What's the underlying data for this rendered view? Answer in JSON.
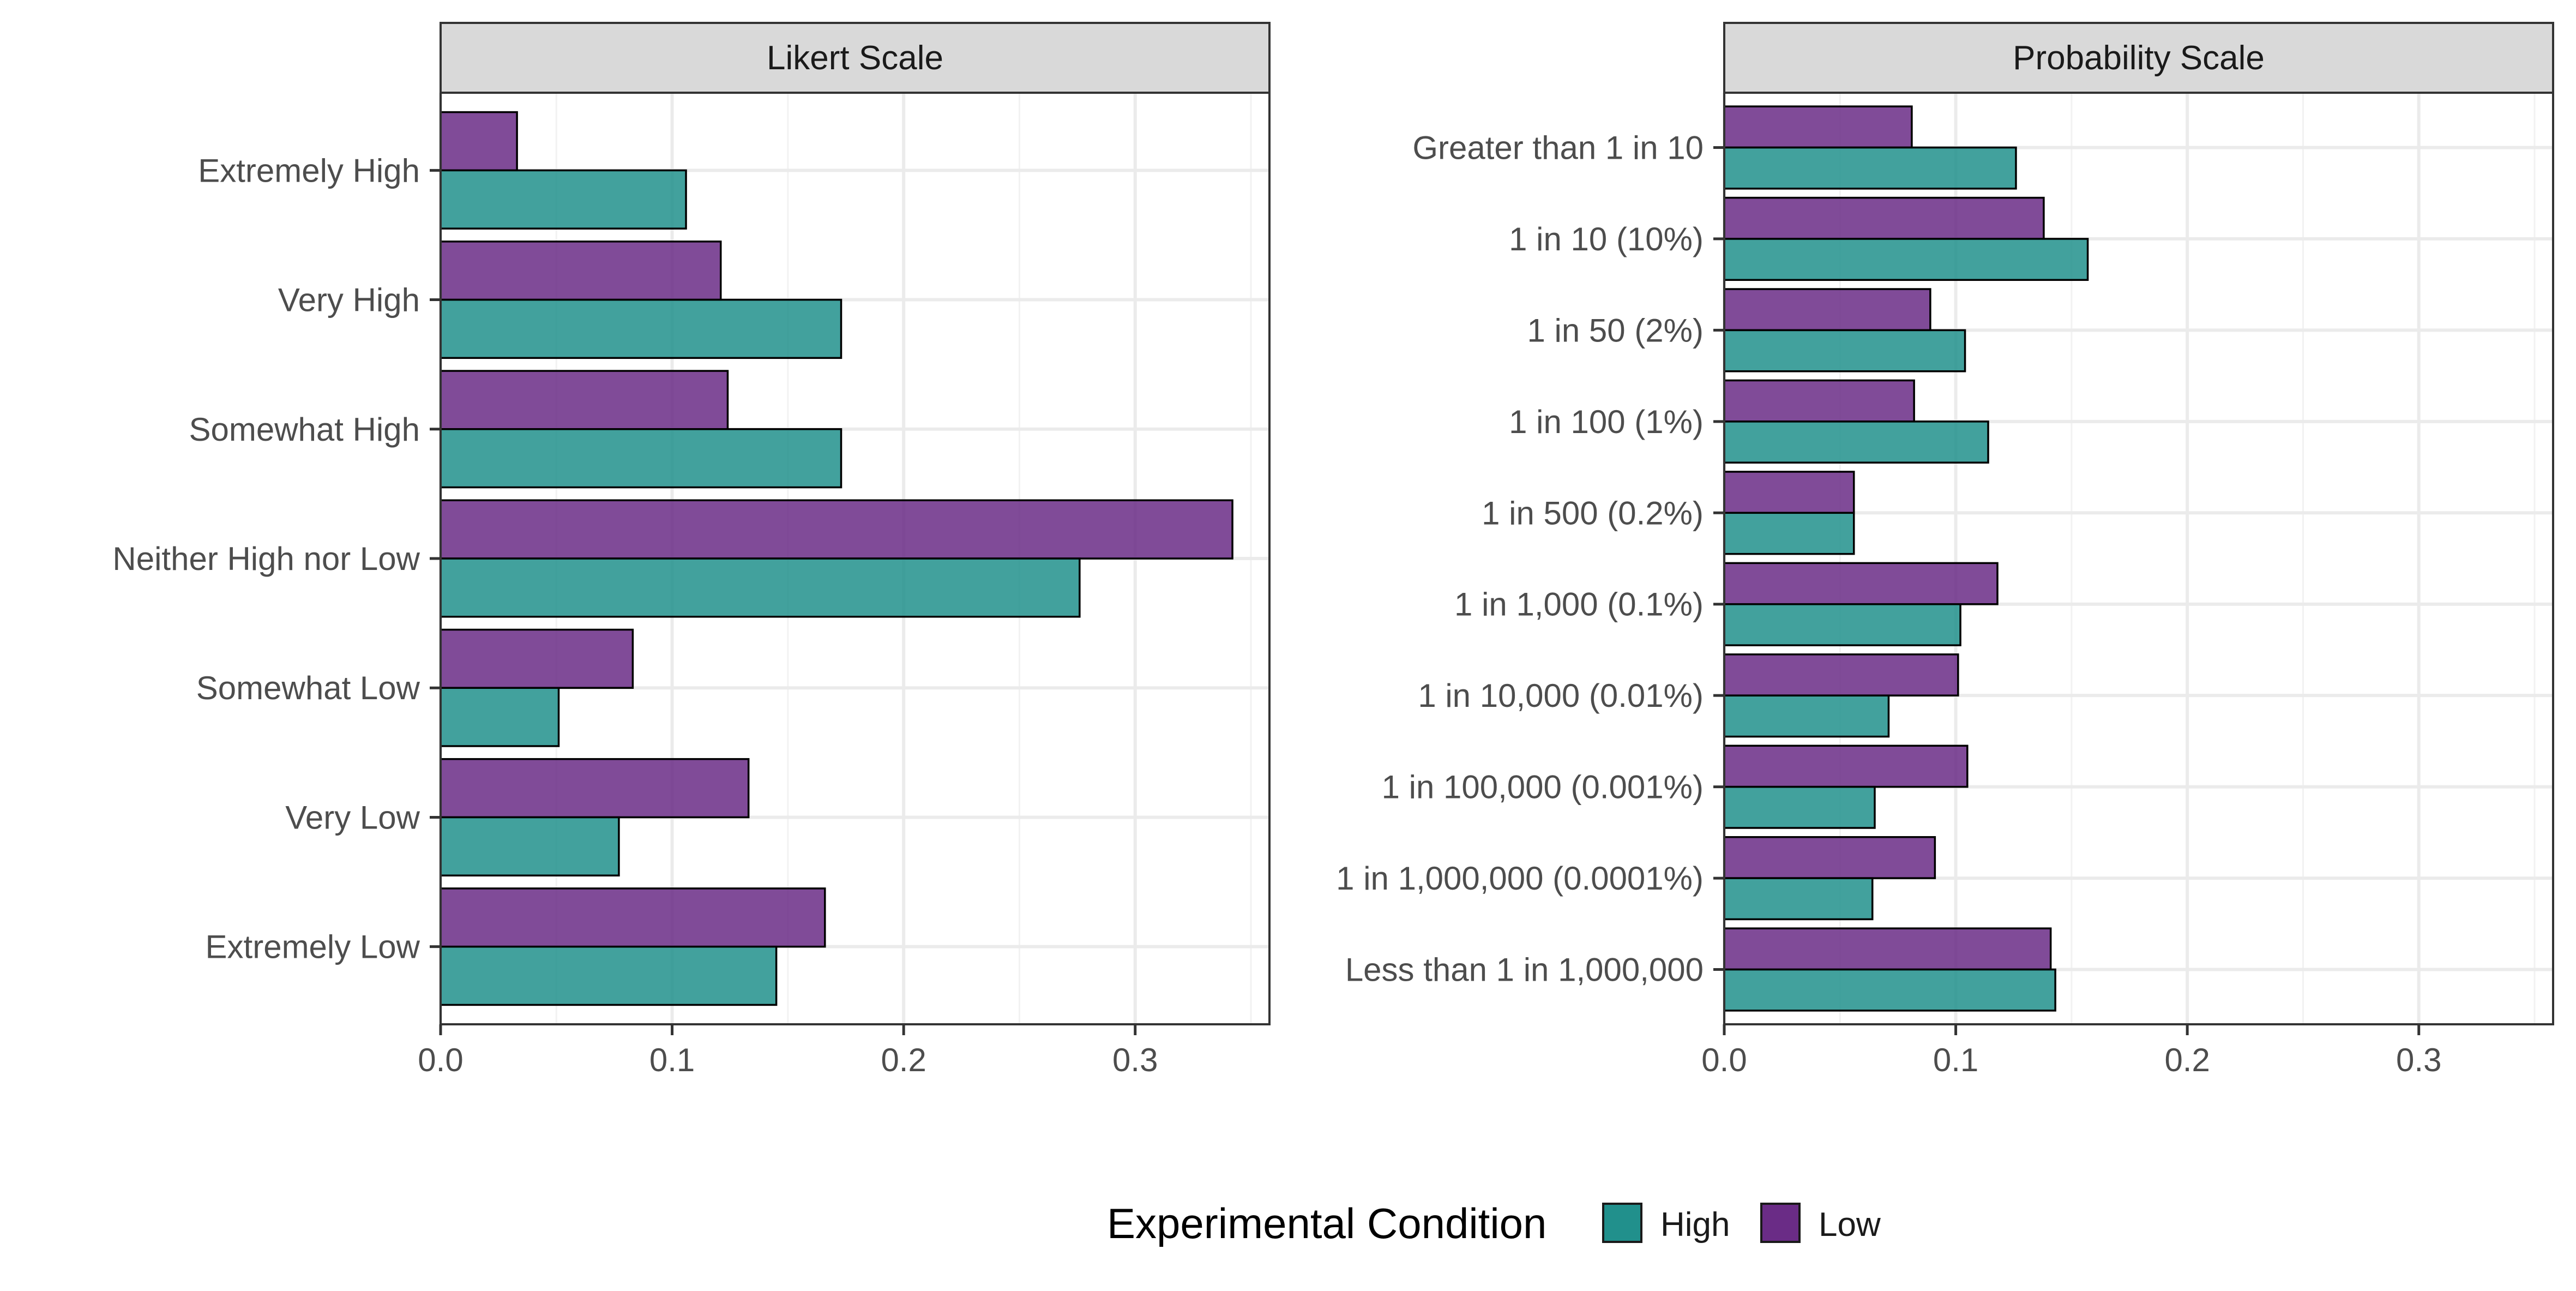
{
  "legend": {
    "title": "Experimental Condition",
    "items": [
      {
        "key": "High",
        "label": "High",
        "color": "#21908C"
      },
      {
        "key": "Low",
        "label": "Low",
        "color": "#6A2C86"
      }
    ]
  },
  "chart_data": [
    {
      "type": "bar",
      "orientation": "horizontal",
      "title": "Likert Scale",
      "xlabel": "",
      "ylabel": "",
      "xlim": [
        0,
        0.358
      ],
      "ticks": [
        0.0,
        0.1,
        0.2,
        0.3
      ],
      "tick_labels": [
        "0.0",
        "0.1",
        "0.2",
        "0.3"
      ],
      "grid": true,
      "categories": [
        "Extremely High",
        "Very High",
        "Somewhat High",
        "Neither High nor Low",
        "Somewhat Low",
        "Very Low",
        "Extremely Low"
      ],
      "series": [
        {
          "name": "High",
          "color": "#21908C",
          "values": [
            0.106,
            0.173,
            0.173,
            0.276,
            0.051,
            0.077,
            0.145
          ]
        },
        {
          "name": "Low",
          "color": "#6A2C86",
          "values": [
            0.033,
            0.121,
            0.124,
            0.342,
            0.083,
            0.133,
            0.166
          ]
        }
      ]
    },
    {
      "type": "bar",
      "orientation": "horizontal",
      "title": "Probability Scale",
      "xlabel": "",
      "ylabel": "",
      "xlim": [
        0,
        0.358
      ],
      "ticks": [
        0.0,
        0.1,
        0.2,
        0.3
      ],
      "tick_labels": [
        "0.0",
        "0.1",
        "0.2",
        "0.3"
      ],
      "grid": true,
      "categories": [
        "Greater than 1 in 10",
        "1 in 10 (10%)",
        "1 in 50 (2%)",
        "1 in 100 (1%)",
        "1 in 500 (0.2%)",
        "1 in 1,000 (0.1%)",
        "1 in 10,000 (0.01%)",
        "1 in 100,000 (0.001%)",
        "1 in 1,000,000 (0.0001%)",
        "Less than 1 in 1,000,000"
      ],
      "series": [
        {
          "name": "High",
          "color": "#21908C",
          "values": [
            0.126,
            0.157,
            0.104,
            0.114,
            0.056,
            0.102,
            0.071,
            0.065,
            0.064,
            0.143
          ]
        },
        {
          "name": "Low",
          "color": "#6A2C86",
          "values": [
            0.081,
            0.138,
            0.089,
            0.082,
            0.056,
            0.118,
            0.101,
            0.105,
            0.091,
            0.141
          ]
        }
      ]
    }
  ]
}
